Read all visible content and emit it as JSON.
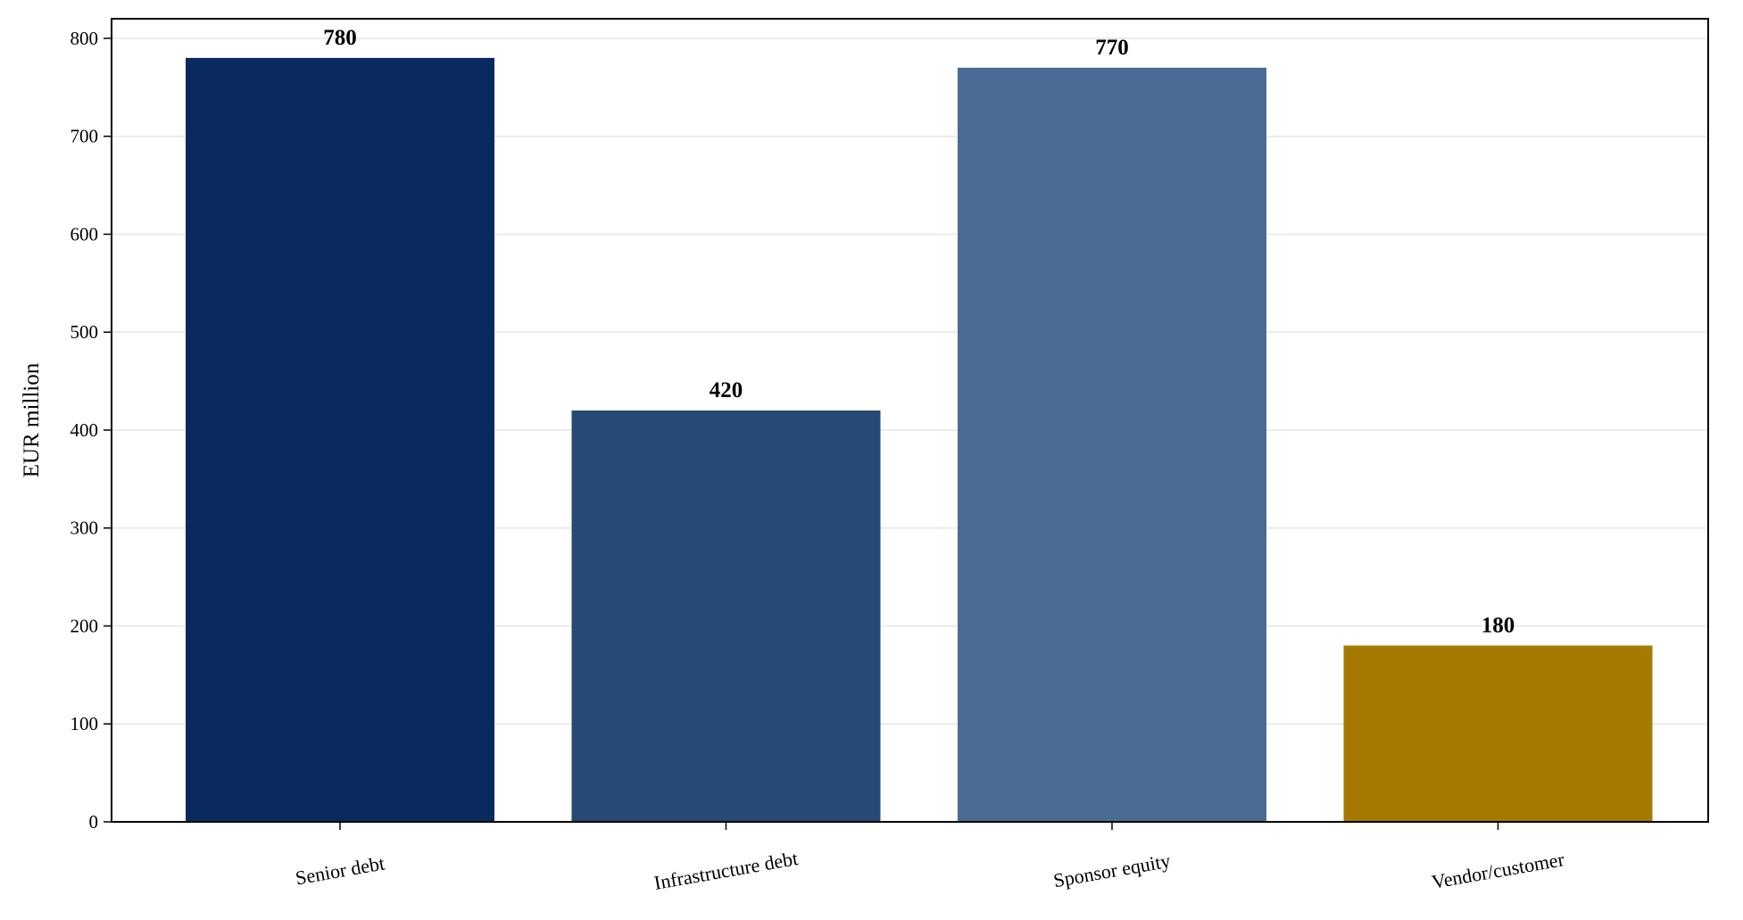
{
  "chart_data": {
    "type": "bar",
    "title": "",
    "xlabel": "",
    "ylabel": "EUR million",
    "ylim": [
      0,
      820
    ],
    "yticks": [
      0,
      100,
      200,
      300,
      400,
      500,
      600,
      700,
      800
    ],
    "grid": "horizontal",
    "categories": [
      "Senior debt",
      "Infrastructure debt",
      "Sponsor equity",
      "Vendor/customer"
    ],
    "values": [
      780,
      420,
      770,
      180
    ],
    "data_labels": [
      "780",
      "420",
      "770",
      "180"
    ],
    "colors": [
      "#0a2a5e",
      "#264a73",
      "#4a6b93",
      "#a57a00"
    ]
  }
}
